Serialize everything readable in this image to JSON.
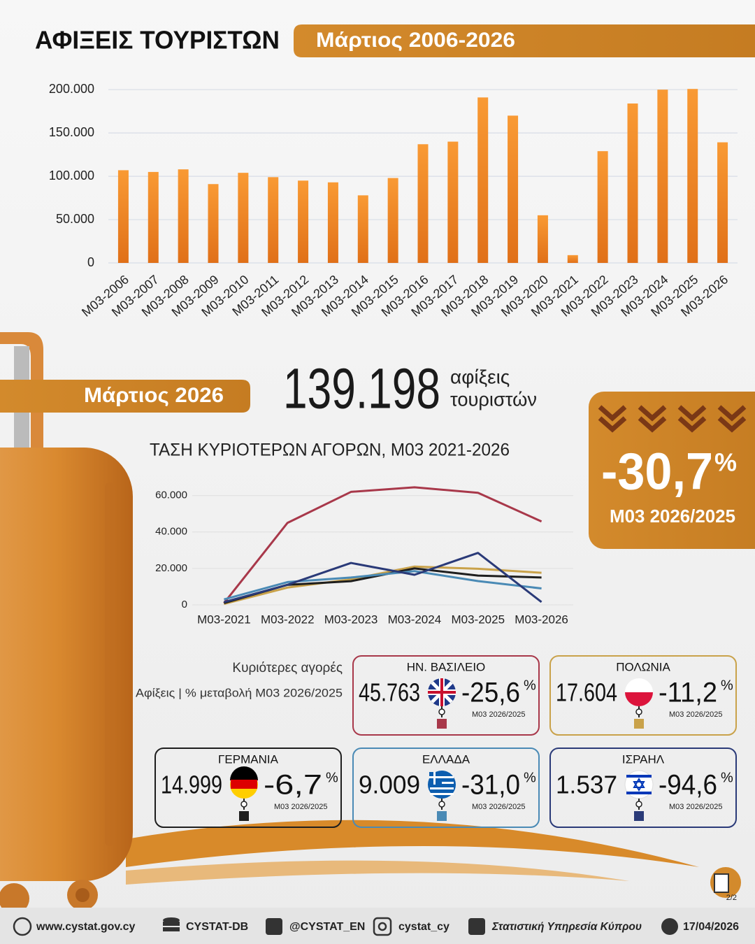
{
  "header": {
    "title": "ΑΦΙΞΕΙΣ ΤΟΥΡΙΣΤΩΝ",
    "period": "Μάρτιος 2006-2026",
    "month": "Μάρτιος 2026"
  },
  "headline": {
    "arrivals": "139.198",
    "label_line1": "αφίξεις",
    "label_line2": "τουριστών",
    "change": "-30,7",
    "percent_sign": "%",
    "change_period": "Μ03 2026/2025"
  },
  "markets": {
    "heading": "Κυριότερες αγορές",
    "subheading": "Αφίξεις | % μεταβολή Μ03 2026/2025",
    "cards": [
      {
        "arrivals": "45.763",
        "change": "-25,6"
      },
      {
        "arrivals": "17.604",
        "change": "-11,2"
      },
      {
        "arrivals": "14.999",
        "change": "-6,7"
      },
      {
        "arrivals": "9.009",
        "change": "-31,0"
      },
      {
        "arrivals": "1.537",
        "change": "-94,6"
      }
    ]
  },
  "footer": {
    "website": "www.cystat.gov.cy",
    "database": "CYSTAT-DB",
    "x_account": "@CYSTAT_EN",
    "instagram": "cystat_cy",
    "facebook": "Στατιστική Υπηρεσία Κύπρου",
    "date": "17/04/2026",
    "page": "2/2"
  },
  "chart_data": [
    {
      "type": "bar",
      "categories": [
        "Μ03-2006",
        "Μ03-2007",
        "Μ03-2008",
        "Μ03-2009",
        "Μ03-2010",
        "Μ03-2011",
        "Μ03-2012",
        "Μ03-2013",
        "Μ03-2014",
        "Μ03-2015",
        "Μ03-2016",
        "Μ03-2017",
        "Μ03-2018",
        "Μ03-2019",
        "Μ03-2020",
        "Μ03-2021",
        "Μ03-2022",
        "Μ03-2023",
        "Μ03-2024",
        "Μ03-2025",
        "Μ03-2026"
      ],
      "values": [
        107000,
        105000,
        108000,
        91000,
        104000,
        99000,
        95000,
        93000,
        78000,
        98000,
        137000,
        140000,
        191000,
        170000,
        55000,
        9000,
        129000,
        184000,
        200000,
        200800,
        139198
      ],
      "color": "#f28c28",
      "ylim": [
        0,
        205000
      ],
      "yticks": [
        0,
        {
          "value": 50000,
          "label": "50.000"
        },
        {
          "value": 100000,
          "label": "100.000"
        },
        {
          "value": 150000,
          "label": "150.000"
        },
        {
          "value": 200000,
          "label": "200.000"
        }
      ],
      "grid": true
    },
    {
      "type": "line",
      "title": "ΤΑΣΗ ΚΥΡΙΟΤΕΡΩΝ ΑΓΟΡΩΝ, Μ03 2021-2026",
      "categories": [
        "Μ03-2021",
        "Μ03-2022",
        "Μ03-2023",
        "Μ03-2024",
        "Μ03-2025",
        "Μ03-2026"
      ],
      "series": [
        {
          "name": "ΗΝ. ΒΑΣΙΛΕΙΟ",
          "color": "#a8384a",
          "values": [
            1000,
            45000,
            62000,
            64500,
            61500,
            45763
          ]
        },
        {
          "name": "ΠΟΛΩΝΙΑ",
          "color": "#c9a24a",
          "values": [
            500,
            9500,
            14000,
            21000,
            19800,
            17604
          ]
        },
        {
          "name": "ΓΕΡΜΑΝΙΑ",
          "color": "#1e1e1e",
          "values": [
            1000,
            11000,
            13000,
            20000,
            16076,
            14999
          ]
        },
        {
          "name": "ΕΛΛΑΔΑ",
          "color": "#4a8ab5",
          "values": [
            3000,
            12500,
            15000,
            18500,
            13056,
            9009
          ]
        },
        {
          "name": "ΙΣΡΑΗΛ",
          "color": "#2a3a78",
          "values": [
            1500,
            11000,
            23000,
            16500,
            28500,
            1537
          ]
        }
      ],
      "ylim": [
        0,
        66000
      ],
      "yticks": [
        0,
        {
          "value": 20000,
          "label": "20.000"
        },
        {
          "value": 40000,
          "label": "40.000"
        },
        {
          "value": 60000,
          "label": "60.000"
        }
      ],
      "grid": true
    }
  ]
}
